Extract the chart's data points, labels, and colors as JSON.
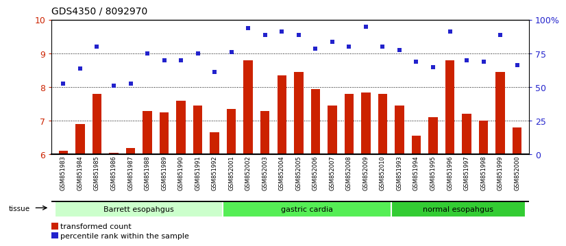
{
  "title": "GDS4350 / 8092970",
  "categories": [
    "GSM851983",
    "GSM851984",
    "GSM851985",
    "GSM851986",
    "GSM851987",
    "GSM851988",
    "GSM851989",
    "GSM851990",
    "GSM851991",
    "GSM851992",
    "GSM852001",
    "GSM852002",
    "GSM852003",
    "GSM852004",
    "GSM852005",
    "GSM852006",
    "GSM852007",
    "GSM852008",
    "GSM852009",
    "GSM852010",
    "GSM851993",
    "GSM851994",
    "GSM851995",
    "GSM851996",
    "GSM851997",
    "GSM851998",
    "GSM851999",
    "GSM852000"
  ],
  "bar_values": [
    6.1,
    6.9,
    7.8,
    6.05,
    6.2,
    7.3,
    7.25,
    7.6,
    7.45,
    6.65,
    7.35,
    8.8,
    7.3,
    8.35,
    8.45,
    7.95,
    7.45,
    7.8,
    7.85,
    7.8,
    7.45,
    6.55,
    7.1,
    8.8,
    7.2,
    7.0,
    8.45,
    6.8
  ],
  "dot_values_left": [
    8.1,
    8.55,
    9.2,
    8.05,
    8.1,
    9.0,
    8.8,
    8.8,
    9.0,
    8.45,
    9.05,
    9.75,
    9.55,
    9.65,
    9.55,
    9.15,
    9.35,
    9.2,
    9.8,
    9.2,
    9.1,
    8.75,
    8.6,
    9.65,
    8.8,
    8.75,
    9.55,
    8.65
  ],
  "groups": [
    {
      "label": "Barrett esopahgus",
      "start": 0,
      "end": 9,
      "color": "#ccffcc"
    },
    {
      "label": "gastric cardia",
      "start": 10,
      "end": 19,
      "color": "#55ee55"
    },
    {
      "label": "normal esopahgus",
      "start": 20,
      "end": 27,
      "color": "#33cc33"
    }
  ],
  "bar_color": "#cc2200",
  "dot_color": "#2222cc",
  "ylim_left": [
    6,
    10
  ],
  "ylim_right": [
    0,
    100
  ],
  "yticks_left": [
    6,
    7,
    8,
    9,
    10
  ],
  "yticks_right": [
    0,
    25,
    50,
    75,
    100
  ],
  "ytick_labels_right": [
    "0",
    "25",
    "50",
    "75",
    "100%"
  ],
  "axis_color_left": "#cc2200",
  "axis_color_right": "#2222cc",
  "title_fontsize": 10,
  "tick_bg_color": "#dddddd"
}
